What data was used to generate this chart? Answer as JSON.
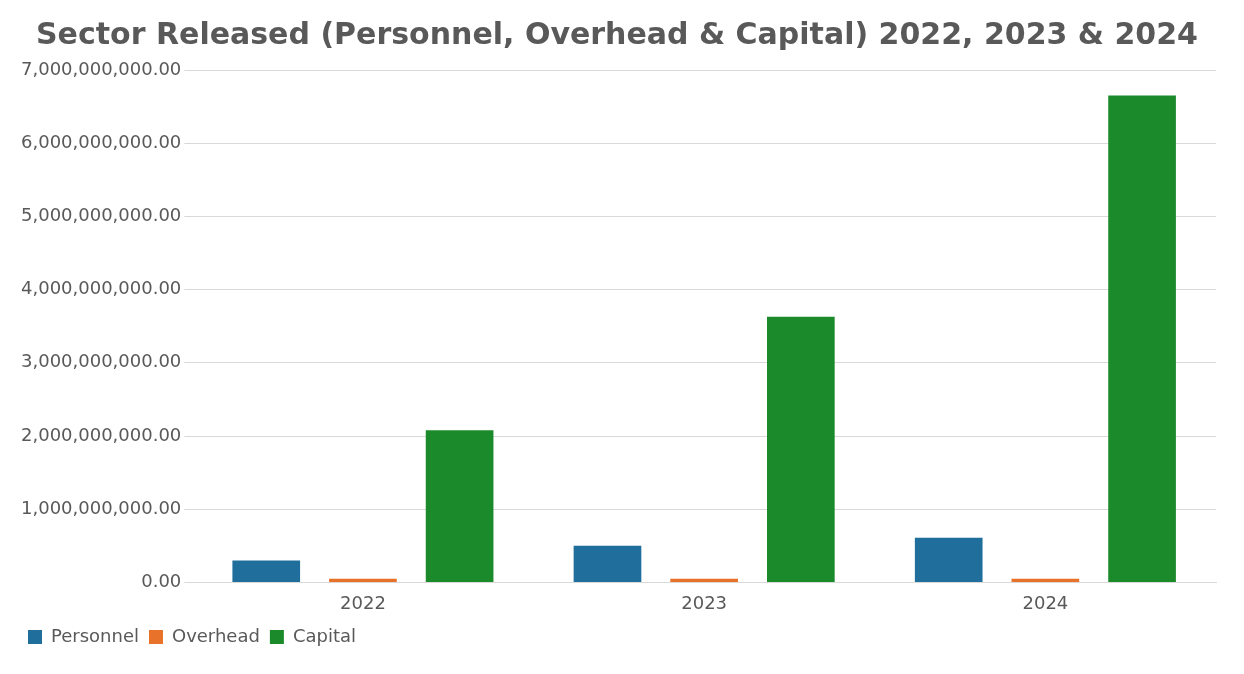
{
  "chart_data": {
    "type": "bar",
    "title": "Sector Released (Personnel, Overhead & Capital) 2022, 2023 & 2024",
    "categories": [
      "2022",
      "2023",
      "2024"
    ],
    "series": [
      {
        "name": "Personnel",
        "color": "#1f6e9c",
        "values": [
          300000000,
          500000000,
          610000000
        ]
      },
      {
        "name": "Overhead",
        "color": "#e8722a",
        "values": [
          50000000,
          50000000,
          50000000
        ]
      },
      {
        "name": "Capital",
        "color": "#1a8a2a",
        "values": [
          2080000000,
          3630000000,
          6650000000
        ]
      }
    ],
    "ylim": [
      0,
      7000000000
    ],
    "yticks": [
      {
        "value": 0,
        "label": "0.00"
      },
      {
        "value": 1000000000,
        "label": "1,000,000,000.00"
      },
      {
        "value": 2000000000,
        "label": "2,000,000,000.00"
      },
      {
        "value": 3000000000,
        "label": "3,000,000,000.00"
      },
      {
        "value": 4000000000,
        "label": "4,000,000,000.00"
      },
      {
        "value": 5000000000,
        "label": "5,000,000,000.00"
      },
      {
        "value": 6000000000,
        "label": "6,000,000,000.00"
      },
      {
        "value": 7000000000,
        "label": "7,000,000,000.00"
      }
    ],
    "grid": "y",
    "legend": "bottom left"
  }
}
